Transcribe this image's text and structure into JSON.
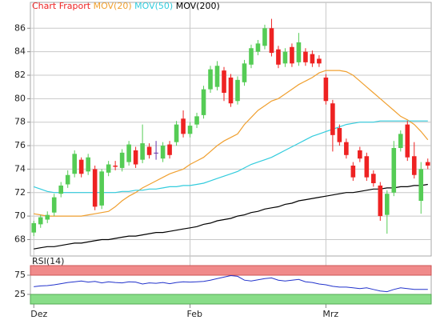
{
  "chart_data": [
    {
      "type": "candlestick",
      "title": "Chart Fraport",
      "title_color": "#ee2222",
      "categories": [
        "Dez",
        null,
        null,
        null,
        null,
        null,
        null,
        null,
        null,
        null,
        null,
        null,
        null,
        null,
        null,
        null,
        null,
        null,
        null,
        null,
        null,
        null,
        null,
        "Feb",
        null,
        null,
        null,
        null,
        null,
        null,
        null,
        null,
        null,
        null,
        null,
        null,
        null,
        null,
        null,
        null,
        null,
        null,
        null,
        "Mrz",
        null,
        null,
        null,
        null,
        null,
        null,
        null,
        null,
        null,
        null,
        null,
        null,
        null,
        null,
        null
      ],
      "open": [
        68.6,
        69.3,
        69.7,
        70.3,
        71.9,
        72.7,
        73.6,
        74.8,
        73.8,
        74.0,
        70.9,
        73.7,
        74.3,
        74.1,
        74.6,
        75.6,
        74.8,
        75.9,
        75.4,
        74.9,
        76.1,
        76.3,
        78.3,
        77.0,
        77.8,
        78.6,
        80.8,
        81.0,
        82.4,
        81.8,
        79.8,
        81.4,
        82.9,
        84.0,
        84.5,
        86.0,
        84.2,
        83.0,
        84.4,
        83.1,
        84.0,
        83.8,
        83.4,
        81.8,
        79.6,
        77.5,
        76.3,
        74.3,
        75.6,
        75.1,
        73.6,
        72.6,
        70.1,
        72.0,
        75.8,
        77.8,
        75.1,
        71.3,
        74.6
      ],
      "high": [
        69.6,
        70.1,
        70.4,
        71.9,
        72.9,
        73.9,
        75.6,
        75.0,
        75.3,
        74.3,
        74.0,
        74.7,
        74.7,
        75.7,
        76.4,
        75.9,
        77.8,
        76.2,
        76.4,
        76.3,
        76.4,
        78.1,
        79.0,
        78.0,
        78.8,
        81.1,
        82.8,
        83.2,
        82.7,
        82.1,
        81.9,
        83.3,
        84.6,
        85.0,
        86.3,
        86.8,
        84.5,
        84.3,
        84.7,
        85.6,
        84.3,
        84.1,
        83.7,
        82.1,
        79.9,
        77.8,
        76.6,
        74.6,
        75.9,
        75.4,
        73.9,
        72.9,
        72.2,
        76.4,
        77.3,
        78.1,
        76.3,
        74.6,
        74.9
      ],
      "low": [
        68.3,
        69.0,
        69.4,
        70.0,
        71.6,
        72.4,
        73.3,
        73.3,
        73.5,
        70.5,
        70.6,
        73.4,
        73.9,
        73.8,
        74.3,
        74.1,
        74.5,
        74.9,
        74.8,
        74.6,
        74.9,
        76.0,
        76.7,
        76.7,
        77.5,
        78.3,
        80.5,
        80.7,
        79.8,
        79.3,
        79.5,
        81.1,
        82.6,
        83.7,
        84.2,
        83.6,
        82.6,
        82.7,
        82.7,
        82.8,
        82.8,
        82.7,
        82.7,
        79.5,
        75.5,
        76.0,
        74.9,
        73.0,
        74.6,
        73.0,
        72.5,
        69.6,
        68.5,
        71.7,
        75.5,
        74.7,
        73.2,
        70.2,
        74.0
      ],
      "close": [
        69.4,
        69.9,
        70.1,
        71.6,
        72.6,
        73.5,
        75.3,
        73.6,
        75.0,
        70.8,
        73.8,
        74.4,
        74.2,
        75.4,
        76.1,
        74.4,
        76.2,
        75.2,
        75.4,
        76.0,
        75.2,
        77.8,
        77.0,
        77.7,
        78.5,
        80.8,
        82.5,
        82.8,
        80.5,
        79.6,
        81.6,
        83.0,
        84.3,
        84.7,
        86.0,
        83.9,
        82.9,
        84.0,
        83.0,
        84.8,
        83.1,
        83.0,
        83.0,
        79.8,
        76.9,
        76.3,
        75.2,
        73.3,
        74.9,
        73.3,
        72.8,
        70.0,
        71.9,
        75.8,
        77.0,
        75.0,
        73.5,
        74.0,
        74.3
      ],
      "up_color": "#55cc55",
      "down_color": "#ee2222",
      "doji_color": "#6633aa",
      "series": [
        {
          "name": "MOV(20)",
          "color": "#f0a030",
          "values": [
            70.2,
            70.1,
            70.0,
            70.0,
            70.0,
            70.0,
            70.0,
            70.0,
            70.1,
            70.2,
            70.3,
            70.4,
            70.8,
            71.3,
            71.7,
            72.0,
            72.4,
            72.7,
            73.0,
            73.3,
            73.6,
            73.8,
            74.0,
            74.4,
            74.7,
            75.0,
            75.5,
            76.0,
            76.4,
            76.7,
            77.0,
            77.8,
            78.4,
            79.0,
            79.4,
            79.8,
            80.0,
            80.4,
            80.8,
            81.2,
            81.5,
            81.8,
            82.2,
            82.4,
            82.4,
            82.4,
            82.3,
            82.0,
            81.5,
            81.0,
            80.5,
            80.0,
            79.5,
            79.0,
            78.5,
            78.2,
            77.8,
            77.2,
            76.5
          ]
        },
        {
          "name": "MOV(50)",
          "color": "#33ccdd",
          "values": [
            72.5,
            72.3,
            72.1,
            72.0,
            72.0,
            72.0,
            72.0,
            72.0,
            72.0,
            72.0,
            72.0,
            72.0,
            72.0,
            72.1,
            72.1,
            72.2,
            72.2,
            72.3,
            72.3,
            72.4,
            72.5,
            72.5,
            72.6,
            72.6,
            72.7,
            72.8,
            73.0,
            73.2,
            73.4,
            73.6,
            73.8,
            74.1,
            74.4,
            74.6,
            74.8,
            75.0,
            75.3,
            75.6,
            75.9,
            76.2,
            76.5,
            76.8,
            77.0,
            77.2,
            77.4,
            77.6,
            77.8,
            77.9,
            78.0,
            78.0,
            78.0,
            78.1,
            78.1,
            78.1,
            78.1,
            78.1,
            78.1,
            78.1,
            78.1
          ]
        },
        {
          "name": "MOV(200)",
          "color": "#000000",
          "values": [
            67.2,
            67.3,
            67.4,
            67.4,
            67.5,
            67.6,
            67.7,
            67.7,
            67.8,
            67.9,
            68.0,
            68.0,
            68.1,
            68.2,
            68.3,
            68.3,
            68.4,
            68.5,
            68.6,
            68.6,
            68.7,
            68.8,
            68.9,
            69.0,
            69.1,
            69.3,
            69.4,
            69.6,
            69.7,
            69.8,
            70.0,
            70.1,
            70.3,
            70.4,
            70.6,
            70.7,
            70.8,
            71.0,
            71.1,
            71.3,
            71.4,
            71.5,
            71.6,
            71.7,
            71.8,
            71.9,
            72.0,
            72.0,
            72.1,
            72.2,
            72.3,
            72.3,
            72.4,
            72.4,
            72.5,
            72.5,
            72.6,
            72.6,
            72.7
          ]
        }
      ],
      "ylim": [
        66.6,
        88.2
      ],
      "yticks": [
        68,
        70,
        72,
        74,
        76,
        78,
        80,
        82,
        84,
        86
      ],
      "grid": true
    },
    {
      "type": "line",
      "title": "RSI(14)",
      "color": "#2233cc",
      "values": [
        45,
        47,
        48,
        50,
        53,
        56,
        58,
        60,
        57,
        59,
        55,
        58,
        56,
        55,
        58,
        57,
        52,
        55,
        54,
        56,
        53,
        56,
        58,
        57,
        58,
        59,
        62,
        66,
        70,
        74,
        72,
        62,
        60,
        63,
        66,
        68,
        62,
        60,
        62,
        64,
        58,
        56,
        52,
        50,
        46,
        44,
        44,
        42,
        40,
        42,
        38,
        34,
        32,
        38,
        42,
        40,
        38,
        38,
        38
      ],
      "ylim": [
        0,
        100
      ],
      "yticks": [
        25,
        75
      ],
      "band_colors": [
        "#88dd88",
        "#f08a8a"
      ]
    }
  ]
}
